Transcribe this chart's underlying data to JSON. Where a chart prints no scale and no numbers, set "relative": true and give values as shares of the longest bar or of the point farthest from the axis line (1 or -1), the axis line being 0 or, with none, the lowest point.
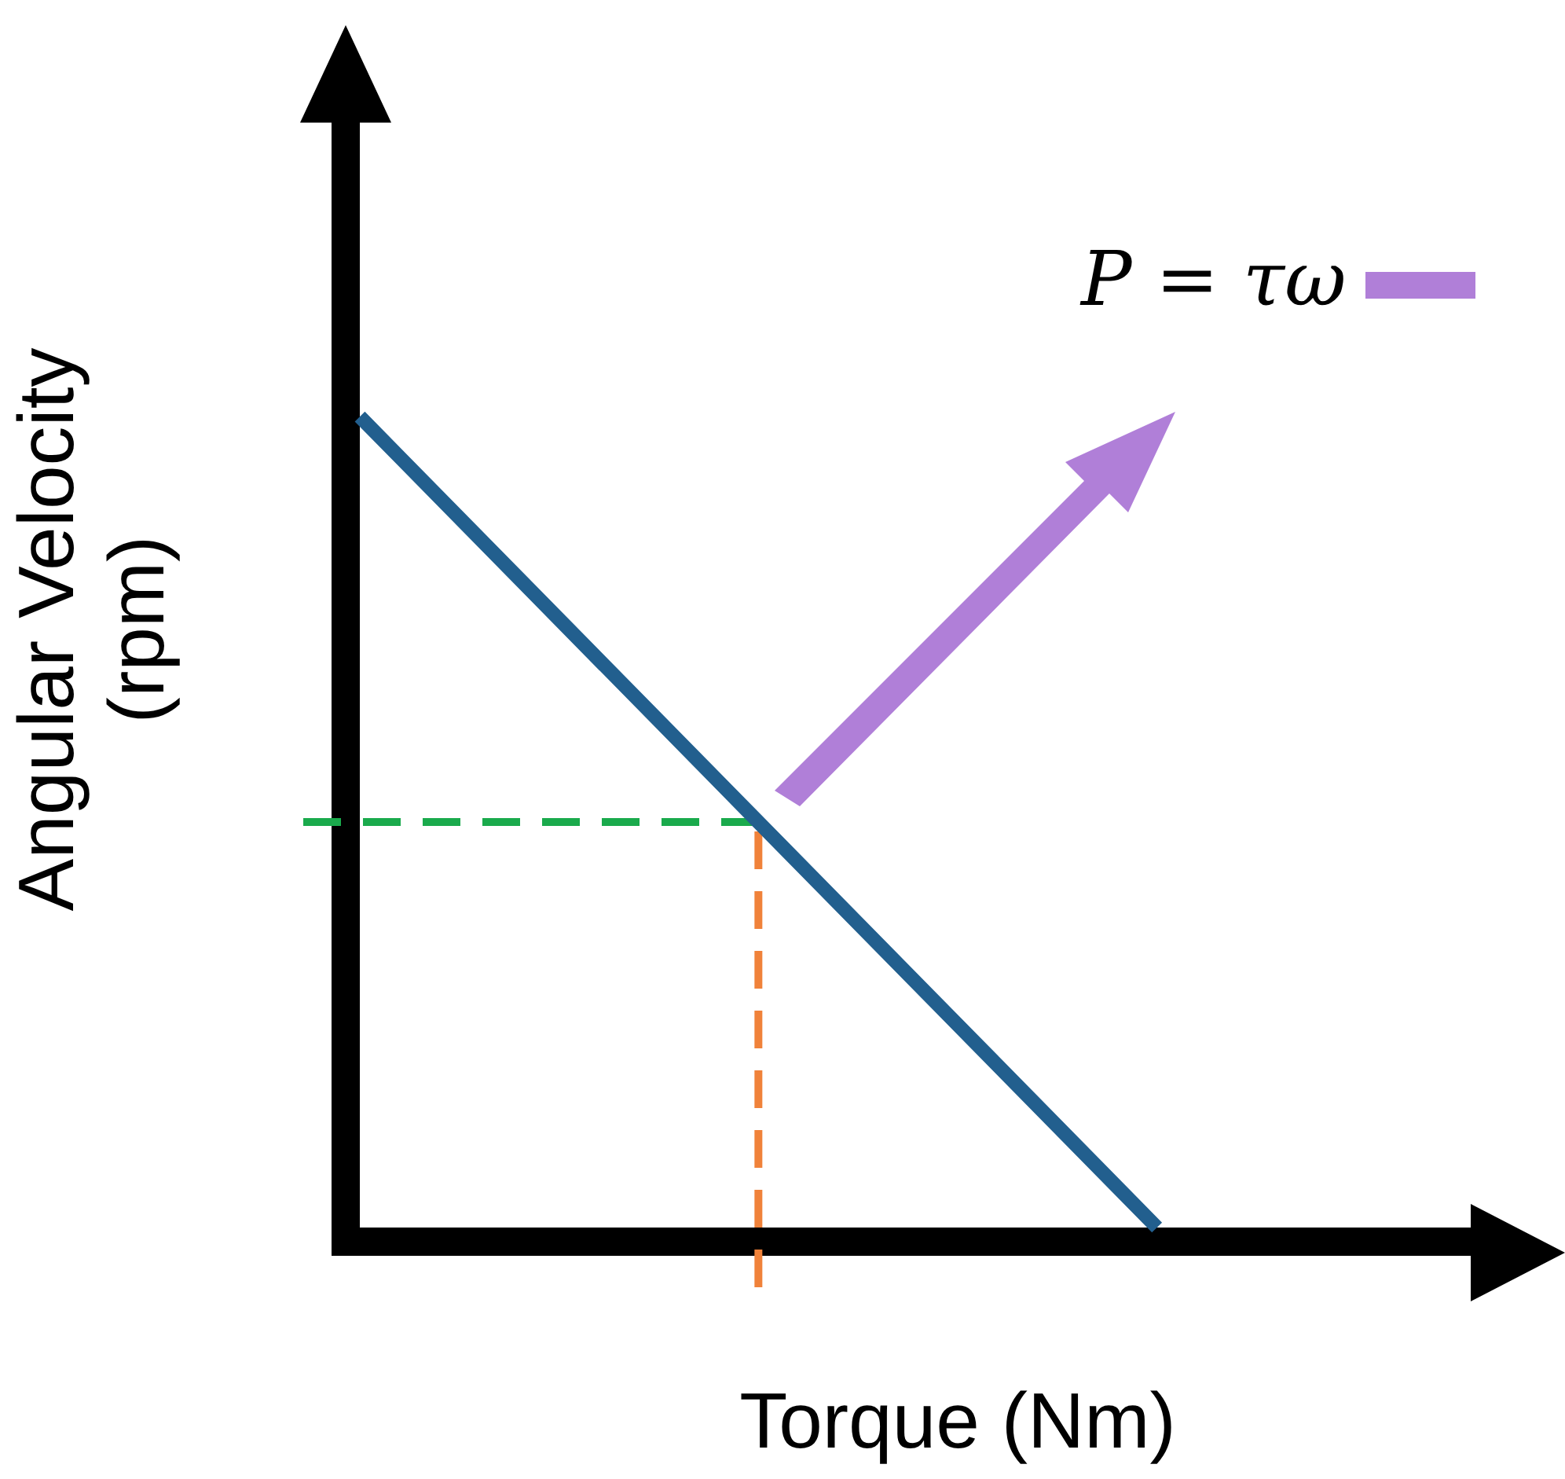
{
  "chart_data": {
    "type": "line",
    "xlabel": "Torque (Nm)",
    "ylabel": "Angular Velocity\n(rpm)",
    "relative": true,
    "grid": false,
    "legend": false,
    "marker": "none",
    "line_style": "solid",
    "categories": [
      null,
      null,
      null,
      null
    ],
    "series": [
      {
        "color": "#225f8e",
        "values": [
          1,
          0.5,
          0,
          null
        ]
      }
    ],
    "ref_lines": [
      {
        "axis": "y",
        "value": 0.5,
        "label": null,
        "color": "#1aaa4c",
        "line_style": "dashed"
      }
    ],
    "annotations": [
      "P = τω"
    ]
  }
}
